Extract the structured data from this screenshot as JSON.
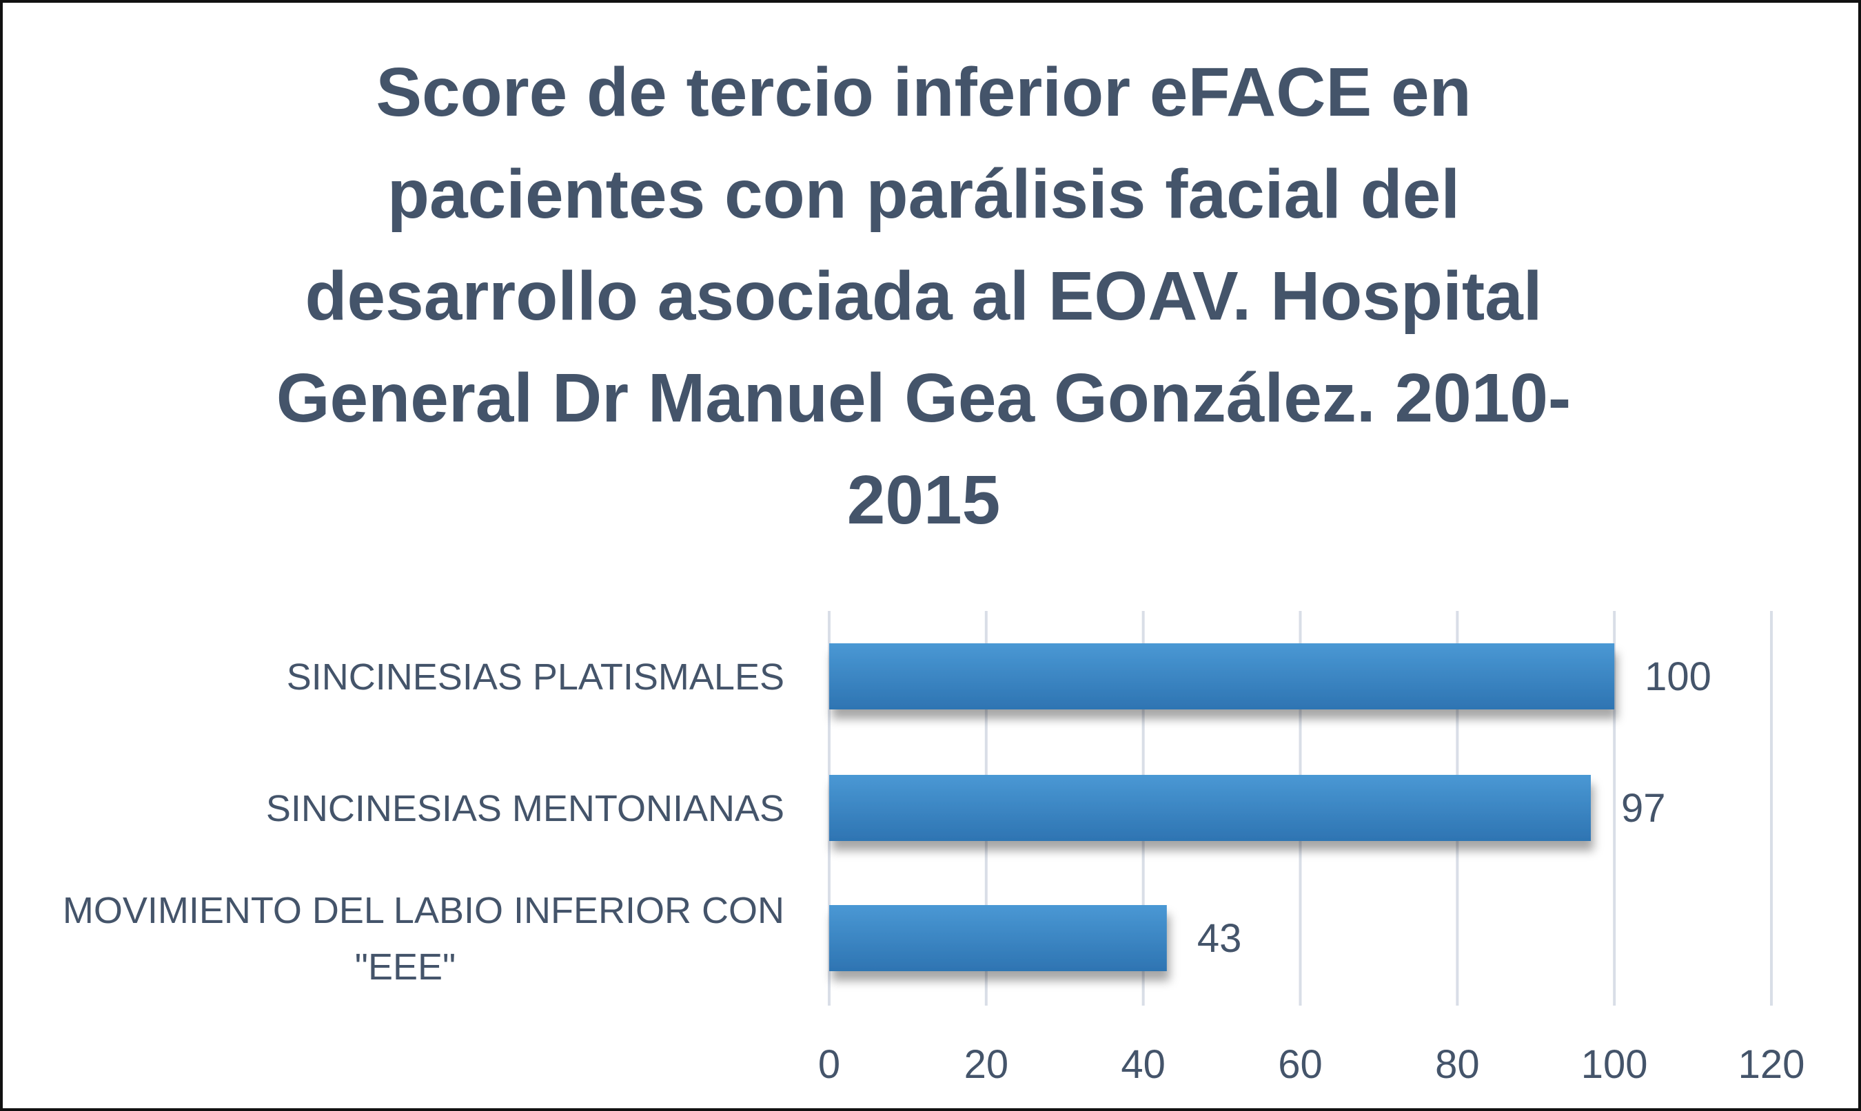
{
  "chart_data": {
    "type": "bar",
    "orientation": "horizontal",
    "title_lines": [
      "Score de tercio inferior eFACE en",
      "pacientes con parálisis facial del",
      "desarrollo asociada al EOAV. Hospital",
      "General Dr Manuel Gea González. 2010-",
      "2015"
    ],
    "categories": [
      [
        "SINCINESIAS PLATISMALES"
      ],
      [
        "SINCINESIAS MENTONIANAS"
      ],
      [
        "MOVIMIENTO DEL LABIO INFERIOR CON",
        "\"EEE\""
      ]
    ],
    "values": [
      100,
      97,
      43
    ],
    "data_labels": [
      "100",
      "97",
      "43"
    ],
    "xlim": [
      0,
      120
    ],
    "xticks": [
      0,
      20,
      40,
      60,
      80,
      100,
      120
    ],
    "xtick_labels": [
      "0",
      "20",
      "40",
      "60",
      "80",
      "100",
      "120"
    ],
    "grid": true,
    "legend": "none",
    "colors": {
      "bar_top": "#4a98d4",
      "bar_bottom": "#2e74b2",
      "text": "#44546a",
      "grid": "#d9dee7"
    }
  }
}
